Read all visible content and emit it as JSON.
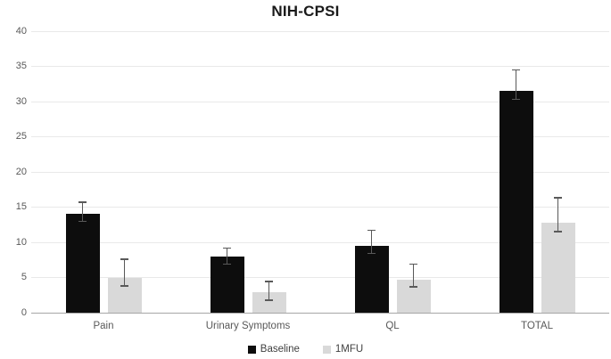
{
  "title": "NIH-CPSI",
  "colors": {
    "baseline_bar": "#0d0d0d",
    "mfu_bar": "#d9d9d9",
    "error_bar": "#595959",
    "gridline": "#e9e9e9",
    "axis_line": "#a6a6a6",
    "tick_text": "#595959",
    "category_text": "#595959",
    "legend_text": "#404040",
    "title_text": "#1a1a1a",
    "background": "#ffffff"
  },
  "chart_data": {
    "type": "bar",
    "title": "NIH-CPSI",
    "xlabel": "",
    "ylabel": "",
    "categories": [
      "Pain",
      "Urinary Symptoms",
      "QL",
      "TOTAL"
    ],
    "series": [
      {
        "name": "Baseline",
        "color_key": "baseline_bar",
        "values": [
          14.1,
          8.0,
          9.5,
          31.5
        ],
        "error_low": [
          13.0,
          6.9,
          8.4,
          30.3
        ],
        "error_high": [
          15.7,
          9.2,
          11.7,
          34.5
        ]
      },
      {
        "name": "1MFU",
        "color_key": "mfu_bar",
        "values": [
          5.0,
          2.9,
          4.7,
          12.8
        ],
        "error_low": [
          3.8,
          1.8,
          3.7,
          11.5
        ],
        "error_high": [
          7.6,
          4.4,
          6.9,
          16.3
        ]
      }
    ],
    "ylim": [
      0,
      40
    ],
    "yticks": [
      0,
      5,
      10,
      15,
      20,
      25,
      30,
      35,
      40
    ],
    "grid": true,
    "legend_position": "bottom"
  }
}
